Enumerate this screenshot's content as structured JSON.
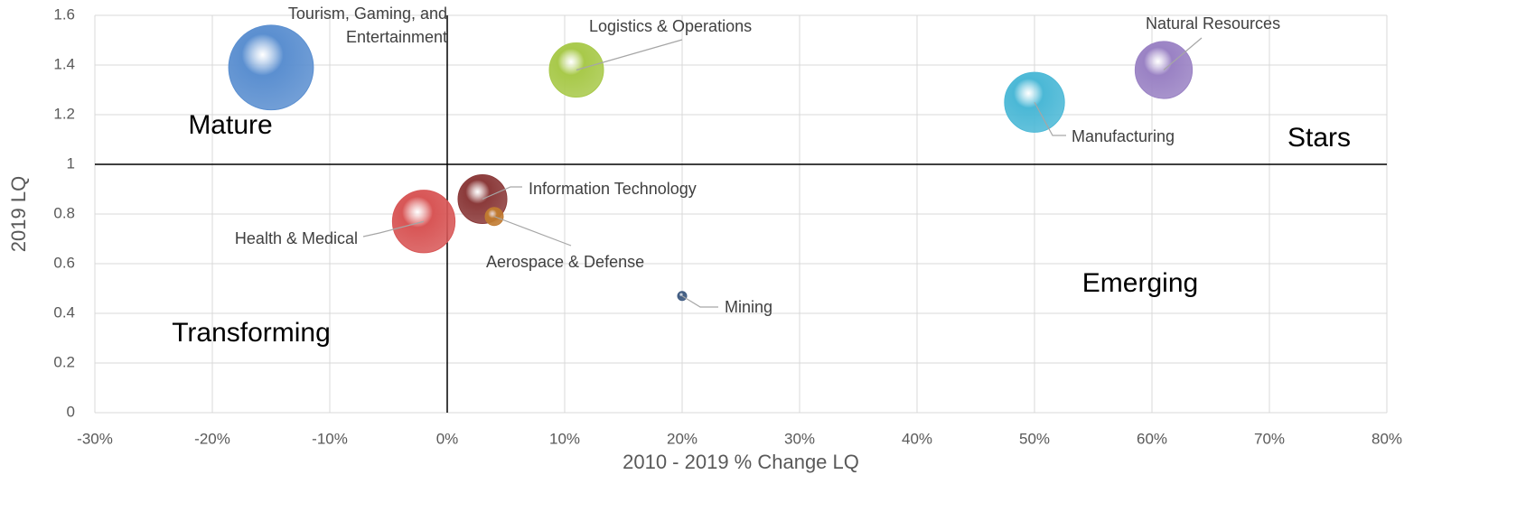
{
  "chart_data": {
    "type": "bubble",
    "xlabel": "2010 - 2019 % Change LQ",
    "ylabel": "2019 LQ",
    "xlim": [
      -30,
      80
    ],
    "xticks": [
      {
        "value": -30,
        "label": "-30%"
      },
      {
        "value": -20,
        "label": "-20%"
      },
      {
        "value": -10,
        "label": "-10%"
      },
      {
        "value": 0,
        "label": "0%"
      },
      {
        "value": 10,
        "label": "10%"
      },
      {
        "value": 20,
        "label": "20%"
      },
      {
        "value": 30,
        "label": "30%"
      },
      {
        "value": 40,
        "label": "40%"
      },
      {
        "value": 50,
        "label": "50%"
      },
      {
        "value": 60,
        "label": "60%"
      },
      {
        "value": 70,
        "label": "70%"
      },
      {
        "value": 80,
        "label": "80%"
      }
    ],
    "ylim": [
      0,
      1.6
    ],
    "yticks": [
      0,
      0.2,
      0.4,
      0.6,
      0.8,
      1,
      1.2,
      1.4,
      1.6
    ],
    "grid": true,
    "reference_lines": {
      "x": 0,
      "y": 1
    },
    "annotations": [
      "Mature",
      "Stars",
      "Emerging",
      "Transforming"
    ],
    "series": [
      {
        "name": "Tourism, Gaming, and Entertainment",
        "color": "#5b8fd0",
        "x": [
          -15
        ],
        "values": [
          1.39
        ],
        "sizes": [
          2200
        ]
      },
      {
        "name": "Logistics & Operations",
        "color": "#a8c94a",
        "x": [
          11
        ],
        "values": [
          1.38
        ],
        "sizes": [
          900
        ]
      },
      {
        "name": "Natural Resources",
        "color": "#9a82c4",
        "x": [
          61
        ],
        "values": [
          1.38
        ],
        "sizes": [
          1000
        ]
      },
      {
        "name": "Manufacturing",
        "color": "#4bb8d6",
        "x": [
          50
        ],
        "values": [
          1.25
        ],
        "sizes": [
          1100
        ]
      },
      {
        "name": "Information Technology",
        "color": "#8b3a3a",
        "x": [
          3
        ],
        "values": [
          0.86
        ],
        "sizes": [
          730
        ]
      },
      {
        "name": "Aerospace & Defense",
        "color": "#c07a30",
        "x": [
          4
        ],
        "values": [
          0.79
        ],
        "sizes": [
          100
        ]
      },
      {
        "name": "Health & Medical",
        "color": "#d85656",
        "x": [
          -2
        ],
        "values": [
          0.77
        ],
        "sizes": [
          1200
        ]
      },
      {
        "name": "Mining",
        "color": "#3e5a80",
        "x": [
          20
        ],
        "values": [
          0.47
        ],
        "sizes": [
          25
        ]
      }
    ]
  }
}
